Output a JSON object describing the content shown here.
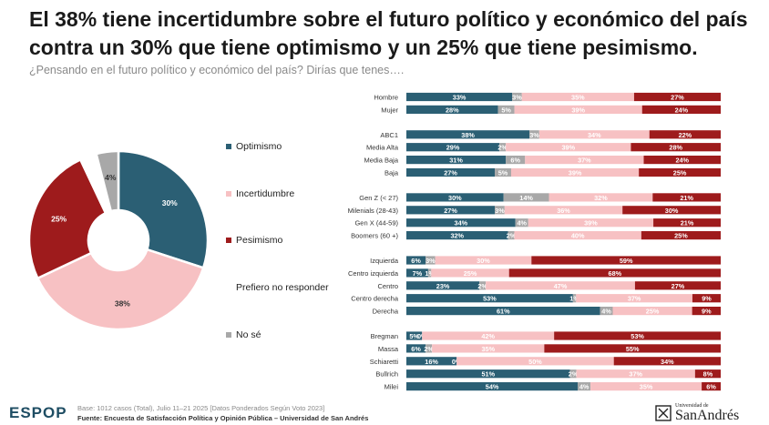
{
  "title": "El 38% tiene incertidumbre sobre el futuro político y económico del país contra un 30% que tiene optimismo y un 25% que tiene pesimismo.",
  "subtitle": "¿Pensando en el futuro político y económico del país? Dirías que tenes….",
  "colors": {
    "optimismo": "#2b5f74",
    "no_se": "#a8a8a8",
    "incertidumbre": "#f7c1c3",
    "pesimismo": "#9e1b1c",
    "prefiero_no_responder": "#ffffff"
  },
  "legend": [
    {
      "key": "optimismo",
      "label": "Optimismo"
    },
    {
      "key": "incertidumbre",
      "label": "Incertidumbre"
    },
    {
      "key": "pesimismo",
      "label": "Pesimismo"
    },
    {
      "key": "prefiero_no_responder",
      "label": "Prefiero no responder"
    },
    {
      "key": "no_se",
      "label": "No sé"
    }
  ],
  "chart_data": [
    {
      "type": "pie",
      "donut": true,
      "slices": [
        {
          "key": "optimismo",
          "label": "Optimismo",
          "value": 30,
          "value_label": "30%"
        },
        {
          "key": "incertidumbre",
          "label": "Incertidumbre",
          "value": 38,
          "value_label": "38%"
        },
        {
          "key": "pesimismo",
          "label": "Pesimismo",
          "value": 25,
          "value_label": "25%"
        },
        {
          "key": "prefiero_no_responder",
          "label": "Prefiero no responder",
          "value": 3,
          "value_label": ""
        },
        {
          "key": "no_se",
          "label": "No sé",
          "value": 4,
          "value_label": "4%"
        }
      ]
    },
    {
      "type": "bar",
      "orientation": "horizontal",
      "stacked": true,
      "series_order": [
        "optimismo",
        "no_se",
        "incertidumbre",
        "pesimismo"
      ],
      "groups": [
        {
          "rows": [
            {
              "label": "Hombre",
              "values": {
                "optimismo": 33,
                "no_se": 3,
                "incertidumbre": 35,
                "pesimismo": 27
              }
            },
            {
              "label": "Mujer",
              "values": {
                "optimismo": 28,
                "no_se": 5,
                "incertidumbre": 39,
                "pesimismo": 24
              }
            }
          ]
        },
        {
          "rows": [
            {
              "label": "ABC1",
              "values": {
                "optimismo": 38,
                "no_se": 3,
                "incertidumbre": 34,
                "pesimismo": 22
              }
            },
            {
              "label": "Media Alta",
              "values": {
                "optimismo": 29,
                "no_se": 2,
                "incertidumbre": 39,
                "pesimismo": 28
              }
            },
            {
              "label": "Media Baja",
              "values": {
                "optimismo": 31,
                "no_se": 6,
                "incertidumbre": 37,
                "pesimismo": 24
              }
            },
            {
              "label": "Baja",
              "values": {
                "optimismo": 27,
                "no_se": 5,
                "incertidumbre": 39,
                "pesimismo": 25
              }
            }
          ]
        },
        {
          "rows": [
            {
              "label": "Gen Z (< 27)",
              "values": {
                "optimismo": 30,
                "no_se": 14,
                "incertidumbre": 32,
                "pesimismo": 21
              }
            },
            {
              "label": "Milenials (28-43)",
              "values": {
                "optimismo": 27,
                "no_se": 3,
                "incertidumbre": 36,
                "pesimismo": 30
              }
            },
            {
              "label": "Gen X (44-59)",
              "values": {
                "optimismo": 34,
                "no_se": 4,
                "incertidumbre": 39,
                "pesimismo": 21
              }
            },
            {
              "label": "Boomers (60 +)",
              "values": {
                "optimismo": 32,
                "no_se": 2,
                "incertidumbre": 40,
                "pesimismo": 25
              }
            }
          ]
        },
        {
          "rows": [
            {
              "label": "Izquierda",
              "values": {
                "optimismo": 6,
                "no_se": 3,
                "incertidumbre": 30,
                "pesimismo": 59
              }
            },
            {
              "label": "Centro izquierda",
              "values": {
                "optimismo": 7,
                "no_se": 1,
                "incertidumbre": 25,
                "pesimismo": 68
              }
            },
            {
              "label": "Centro",
              "values": {
                "optimismo": 23,
                "no_se": 2,
                "incertidumbre": 47,
                "pesimismo": 27
              }
            },
            {
              "label": "Centro derecha",
              "values": {
                "optimismo": 53,
                "no_se": 1,
                "incertidumbre": 37,
                "pesimismo": 9
              }
            },
            {
              "label": "Derecha",
              "values": {
                "optimismo": 61,
                "no_se": 4,
                "incertidumbre": 25,
                "pesimismo": 9
              }
            }
          ]
        },
        {
          "rows": [
            {
              "label": "Bregman",
              "values": {
                "optimismo": 5,
                "no_se": 0,
                "incertidumbre": 42,
                "pesimismo": 53
              }
            },
            {
              "label": "Massa",
              "values": {
                "optimismo": 6,
                "no_se": 2,
                "incertidumbre": 35,
                "pesimismo": 55
              }
            },
            {
              "label": "Schiaretti",
              "values": {
                "optimismo": 16,
                "no_se": 0,
                "incertidumbre": 50,
                "pesimismo": 34
              }
            },
            {
              "label": "Bullrich",
              "values": {
                "optimismo": 51,
                "no_se": 2,
                "incertidumbre": 37,
                "pesimismo": 8
              }
            },
            {
              "label": "Milei",
              "values": {
                "optimismo": 54,
                "no_se": 4,
                "incertidumbre": 35,
                "pesimismo": 6
              }
            }
          ]
        }
      ]
    }
  ],
  "footer": {
    "base": "Base: 1012 casos (Total), Julio 11–21 2025 [Datos Ponderados Según Voto 2023]",
    "source": "Fuente: Encuesta de Satisfacción Política y Opinión Pública – Universidad de San Andrés",
    "brand": "ESPOP",
    "university_small": "Universidad de",
    "university_big": "SanAndrés"
  }
}
